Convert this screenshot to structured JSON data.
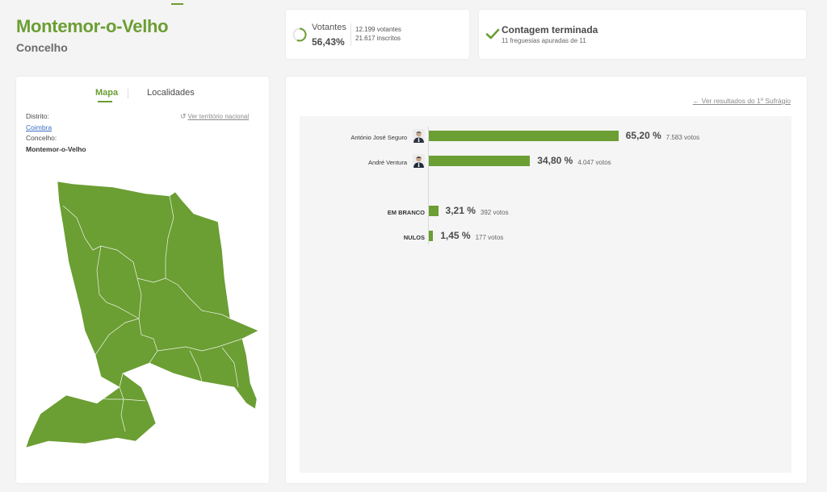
{
  "header": {
    "title": "Montemor-o-Velho",
    "subtitle": "Concelho"
  },
  "votantes": {
    "label": "Votantes",
    "percent": "56,43%",
    "percent_value": 56.43,
    "votantes_text": "12.199 votantes",
    "inscritos_text": "21.617 inscritos"
  },
  "contagem": {
    "title": "Contagem terminada",
    "subtitle": "11 freguesias apuradas de 11"
  },
  "map_panel": {
    "tabs": [
      "Mapa",
      "Localidades"
    ],
    "national_link": "Ver território nacional",
    "distrito_label": "Distrito:",
    "distrito_value": "Coimbra",
    "concelho_label": "Concelho:",
    "concelho_value": "Montemor-o-Velho"
  },
  "results": {
    "back_link": "Ver resultados do 1º Sufrágio",
    "candidates": [
      {
        "name": "António José Seguro",
        "percent": "65,20 %",
        "percent_value": 65.2,
        "votes": "7.583 votos"
      },
      {
        "name": "André Ventura",
        "percent": "34,80 %",
        "percent_value": 34.8,
        "votes": "4.047 votos"
      }
    ],
    "others": [
      {
        "name": "EM BRANCO",
        "percent": "3,21 %",
        "percent_value": 3.21,
        "votes": "392 votos"
      },
      {
        "name": "NULOS",
        "percent": "1,45 %",
        "percent_value": 1.45,
        "votes": "177 votos"
      }
    ]
  },
  "colors": {
    "accent": "#6b9e33",
    "bar": "#6b9e33",
    "link": "#3a6fc4"
  }
}
